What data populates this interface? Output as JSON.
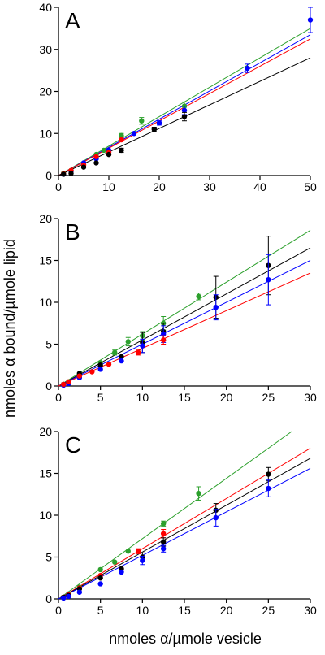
{
  "chart_data": [
    {
      "type": "scatter",
      "panel_label": "A",
      "xlim": [
        0,
        50
      ],
      "ylim": [
        0,
        40
      ],
      "xticks": [
        0,
        10,
        20,
        30,
        40,
        50
      ],
      "yticks": [
        0,
        10,
        20,
        30,
        40
      ],
      "grid": false,
      "series": [
        {
          "color": "#2ca02c",
          "fit_slope": 0.7,
          "points": [
            [
              1.0,
              0.5
            ],
            [
              2.5,
              1.2
            ],
            [
              5,
              3.0
            ],
            [
              7.5,
              5.0
            ],
            [
              9,
              6.0
            ],
            [
              12.5,
              9.5
            ],
            [
              16.5,
              13.0
            ],
            [
              25,
              16.5
            ]
          ],
          "errors": [
            0,
            0,
            0,
            0,
            0,
            0.5,
            0.8,
            1.0
          ]
        },
        {
          "color": "#0000ff",
          "fit_slope": 0.67,
          "points": [
            [
              1.0,
              0.3
            ],
            [
              2.5,
              1.0
            ],
            [
              5,
              3.0
            ],
            [
              7.5,
              4.0
            ],
            [
              10,
              6.0
            ],
            [
              15,
              10.0
            ],
            [
              20,
              12.5
            ],
            [
              25,
              15.5
            ],
            [
              37.5,
              25.5
            ],
            [
              50,
              37.0
            ]
          ],
          "errors": [
            0,
            0,
            0,
            0,
            0,
            0,
            0.5,
            1.0,
            1.0,
            3.0
          ]
        },
        {
          "color": "#ff0000",
          "fit_slope": 0.65,
          "points": [
            [
              1.0,
              0.4
            ],
            [
              2.5,
              1.2
            ],
            [
              5,
              2.5
            ],
            [
              7.5,
              4.5
            ],
            [
              10,
              5.5
            ],
            [
              12.5,
              8.5
            ]
          ],
          "errors": [
            0,
            0,
            0,
            0,
            0,
            0.3
          ]
        },
        {
          "color": "#000000",
          "fit_slope": 0.56,
          "points": [
            [
              1.0,
              0.3
            ],
            [
              2.5,
              0.5
            ],
            [
              5,
              2.0
            ],
            [
              7.5,
              3.0
            ],
            [
              10,
              5.0
            ],
            [
              12.5,
              6.0
            ],
            [
              19,
              11.0
            ],
            [
              25,
              14.0
            ]
          ],
          "errors": [
            0,
            0,
            0,
            0,
            0,
            0.5,
            0.5,
            1.0
          ]
        }
      ]
    },
    {
      "type": "scatter",
      "panel_label": "B",
      "xlim": [
        0,
        30
      ],
      "ylim": [
        0,
        20
      ],
      "xticks": [
        0,
        5,
        10,
        15,
        20,
        25,
        30
      ],
      "yticks": [
        0,
        5,
        10,
        15,
        20
      ],
      "grid": false,
      "series": [
        {
          "color": "#2ca02c",
          "fit_slope": 0.62,
          "points": [
            [
              0.6,
              0.2
            ],
            [
              1.2,
              0.5
            ],
            [
              2.5,
              1.3
            ],
            [
              5,
              2.8
            ],
            [
              6.7,
              4.0
            ],
            [
              8.3,
              5.3
            ],
            [
              10,
              6.0
            ],
            [
              12.5,
              7.5
            ],
            [
              16.7,
              10.7
            ]
          ],
          "errors": [
            0,
            0,
            0,
            0,
            0.3,
            0.5,
            0.5,
            0.8,
            0.4
          ]
        },
        {
          "color": "#000000",
          "fit_slope": 0.55,
          "points": [
            [
              0.6,
              0.2
            ],
            [
              1.2,
              0.4
            ],
            [
              2.5,
              1.5
            ],
            [
              5,
              2.5
            ],
            [
              7.5,
              3.5
            ],
            [
              10,
              5.2
            ],
            [
              12.5,
              6.5
            ],
            [
              18.75,
              10.6
            ],
            [
              25,
              14.4
            ]
          ],
          "errors": [
            0,
            0,
            0,
            0,
            0,
            1.2,
            1.0,
            2.5,
            3.5
          ]
        },
        {
          "color": "#0000ff",
          "fit_slope": 0.5,
          "points": [
            [
              0.6,
              0.1
            ],
            [
              1.2,
              0.3
            ],
            [
              2.5,
              1.0
            ],
            [
              5,
              2.0
            ],
            [
              7.5,
              3.0
            ],
            [
              10,
              4.8
            ],
            [
              12.5,
              6.2
            ],
            [
              18.75,
              9.4
            ],
            [
              25,
              12.7
            ]
          ],
          "errors": [
            0,
            0,
            0,
            0,
            0,
            0.8,
            1.0,
            1.5,
            3.0
          ]
        },
        {
          "color": "#ff0000",
          "fit_slope": 0.45,
          "points": [
            [
              0.6,
              0.2
            ],
            [
              1.2,
              0.5
            ],
            [
              2.5,
              1.2
            ],
            [
              4,
              1.7
            ],
            [
              6,
              2.6
            ],
            [
              9.5,
              4.0
            ],
            [
              12.5,
              5.5
            ]
          ],
          "errors": [
            0,
            0,
            0,
            0,
            0,
            0.3,
            0.5
          ]
        }
      ]
    },
    {
      "type": "scatter",
      "panel_label": "C",
      "xlim": [
        0,
        30
      ],
      "ylim": [
        0,
        20
      ],
      "xticks": [
        0,
        5,
        10,
        15,
        20,
        25,
        30
      ],
      "yticks": [
        0,
        5,
        10,
        15,
        20
      ],
      "grid": false,
      "series": [
        {
          "color": "#2ca02c",
          "fit_slope": 0.72,
          "points": [
            [
              0.6,
              0.2
            ],
            [
              1.2,
              0.6
            ],
            [
              2.5,
              1.4
            ],
            [
              5,
              3.5
            ],
            [
              6.7,
              4.4
            ],
            [
              8.3,
              5.7
            ],
            [
              12.5,
              9.0
            ],
            [
              16.7,
              12.6
            ]
          ],
          "errors": [
            0,
            0,
            0,
            0,
            0,
            0,
            0.3,
            0.8
          ]
        },
        {
          "color": "#ff0000",
          "fit_slope": 0.6,
          "points": [
            [
              0.6,
              0.2
            ],
            [
              1.2,
              0.5
            ],
            [
              2.5,
              1.3
            ],
            [
              5,
              2.8
            ],
            [
              7.5,
              3.6
            ],
            [
              9.5,
              5.7
            ],
            [
              12.5,
              7.8
            ]
          ],
          "errors": [
            0,
            0,
            0,
            0,
            0,
            0.3,
            0.5
          ]
        },
        {
          "color": "#000000",
          "fit_slope": 0.56,
          "points": [
            [
              0.6,
              0.2
            ],
            [
              1.2,
              0.4
            ],
            [
              2.5,
              1.2
            ],
            [
              5,
              2.5
            ],
            [
              7.5,
              3.6
            ],
            [
              10,
              5.0
            ],
            [
              12.5,
              6.8
            ],
            [
              18.75,
              10.6
            ],
            [
              25,
              14.9
            ]
          ],
          "errors": [
            0,
            0,
            0,
            0,
            0,
            0.5,
            0.5,
            0.8,
            0.8
          ]
        },
        {
          "color": "#0000ff",
          "fit_slope": 0.52,
          "points": [
            [
              0.6,
              0.1
            ],
            [
              1.2,
              0.3
            ],
            [
              2.5,
              0.8
            ],
            [
              5,
              1.8
            ],
            [
              7.5,
              3.2
            ],
            [
              10,
              4.6
            ],
            [
              12.5,
              6.0
            ],
            [
              18.75,
              9.7
            ],
            [
              25,
              13.2
            ]
          ],
          "errors": [
            0,
            0,
            0,
            0,
            0,
            0.5,
            0.4,
            1.0,
            1.0
          ]
        }
      ]
    }
  ],
  "y_axis_title": "nmoles α bound/µmole lipid",
  "x_axis_title": "nmoles α/µmole vesicle"
}
